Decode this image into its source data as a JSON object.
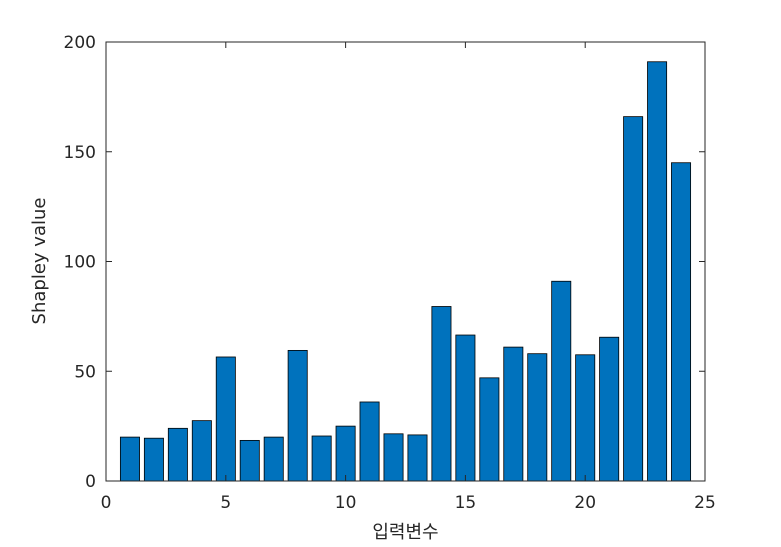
{
  "chart_data": {
    "type": "bar",
    "xlabel": "입력변수",
    "ylabel": "Shapley value",
    "xlim": [
      0,
      25
    ],
    "ylim": [
      0,
      200
    ],
    "xticks": [
      "0",
      "5",
      "10",
      "15",
      "20",
      "25"
    ],
    "yticks": [
      "0",
      "50",
      "100",
      "150",
      "200"
    ],
    "x": [
      1,
      2,
      3,
      4,
      5,
      6,
      7,
      8,
      9,
      10,
      11,
      12,
      13,
      14,
      15,
      16,
      17,
      18,
      19,
      20,
      21,
      22,
      23,
      24
    ],
    "values": [
      20,
      19.5,
      24,
      27.5,
      56.5,
      18.5,
      20,
      59.5,
      20.5,
      25,
      36,
      21.5,
      21,
      79.5,
      66.5,
      47,
      61,
      58,
      91,
      57.5,
      65.5,
      166,
      191,
      145
    ],
    "bar_color": "#0072BD",
    "grid": false,
    "box": true
  }
}
